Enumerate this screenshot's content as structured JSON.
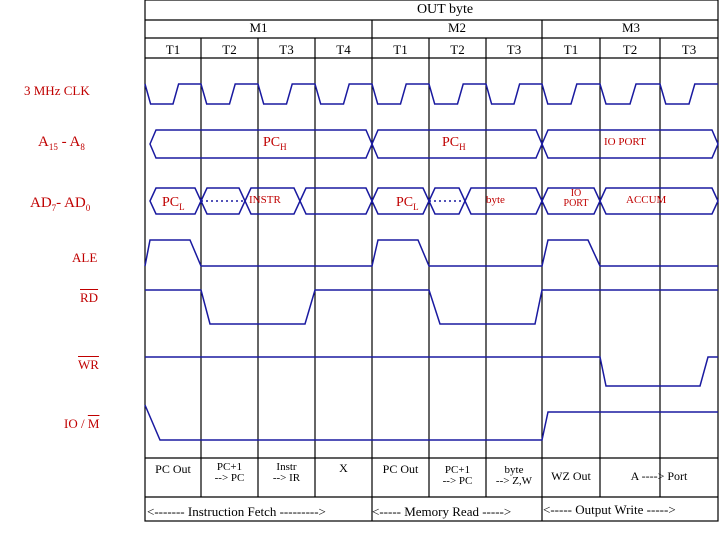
{
  "header": {
    "title": "OUT byte",
    "cycles": [
      "M1",
      "M2",
      "M3"
    ],
    "states": [
      "T1",
      "T2",
      "T3",
      "T4",
      "T1",
      "T2",
      "T3",
      "T1",
      "T2",
      "T3"
    ]
  },
  "signals": {
    "clk": "3 MHz CLK",
    "a_high_a": "A",
    "a_high_sub1": "15",
    "a_high_mid": " - A",
    "a_high_sub2": "8",
    "ad_a": "AD",
    "ad_sub1": "7",
    "ad_mid": "- AD",
    "ad_sub2": "0",
    "ale": "ALE",
    "rd": "RD",
    "wr": "WR",
    "io_m_prefix": "IO / ",
    "io_m_bar": "M"
  },
  "bus_labels": {
    "pch1_main": "PC",
    "pch1_sub": "H",
    "pch2_main": "PC",
    "pch2_sub": "H",
    "io_port_high": "IO PORT",
    "pcl1_main": "PC",
    "pcl1_sub": "L",
    "instr": "INSTR",
    "pcl2_main": "PC",
    "pcl2_sub": "L",
    "byte": "byte",
    "io_port_low_1": "IO",
    "io_port_low_2": "PORT",
    "accum": "ACCUM"
  },
  "footer": {
    "pc_out_1": "PC Out",
    "pc_inc_1a": "PC+1",
    "pc_inc_1b": "--> PC",
    "instr_1a": "Instr",
    "instr_1b": "--> IR",
    "x": "X",
    "pc_out_2": "PC Out",
    "pc_inc_2a": "PC+1",
    "pc_inc_2b": "--> PC",
    "byte_a": "byte",
    "byte_b": "--> Z,W",
    "wz_out": "WZ Out",
    "a_port": "A  ----> Port"
  },
  "bottom_bar": {
    "fetch": "<------- Instruction Fetch --------->",
    "read": "<----- Memory Read ----->",
    "write": "<----- Output Write ----->"
  },
  "colors": {
    "waveform": "#1a1aa0",
    "label": "#c00000",
    "grid": "#000000"
  }
}
